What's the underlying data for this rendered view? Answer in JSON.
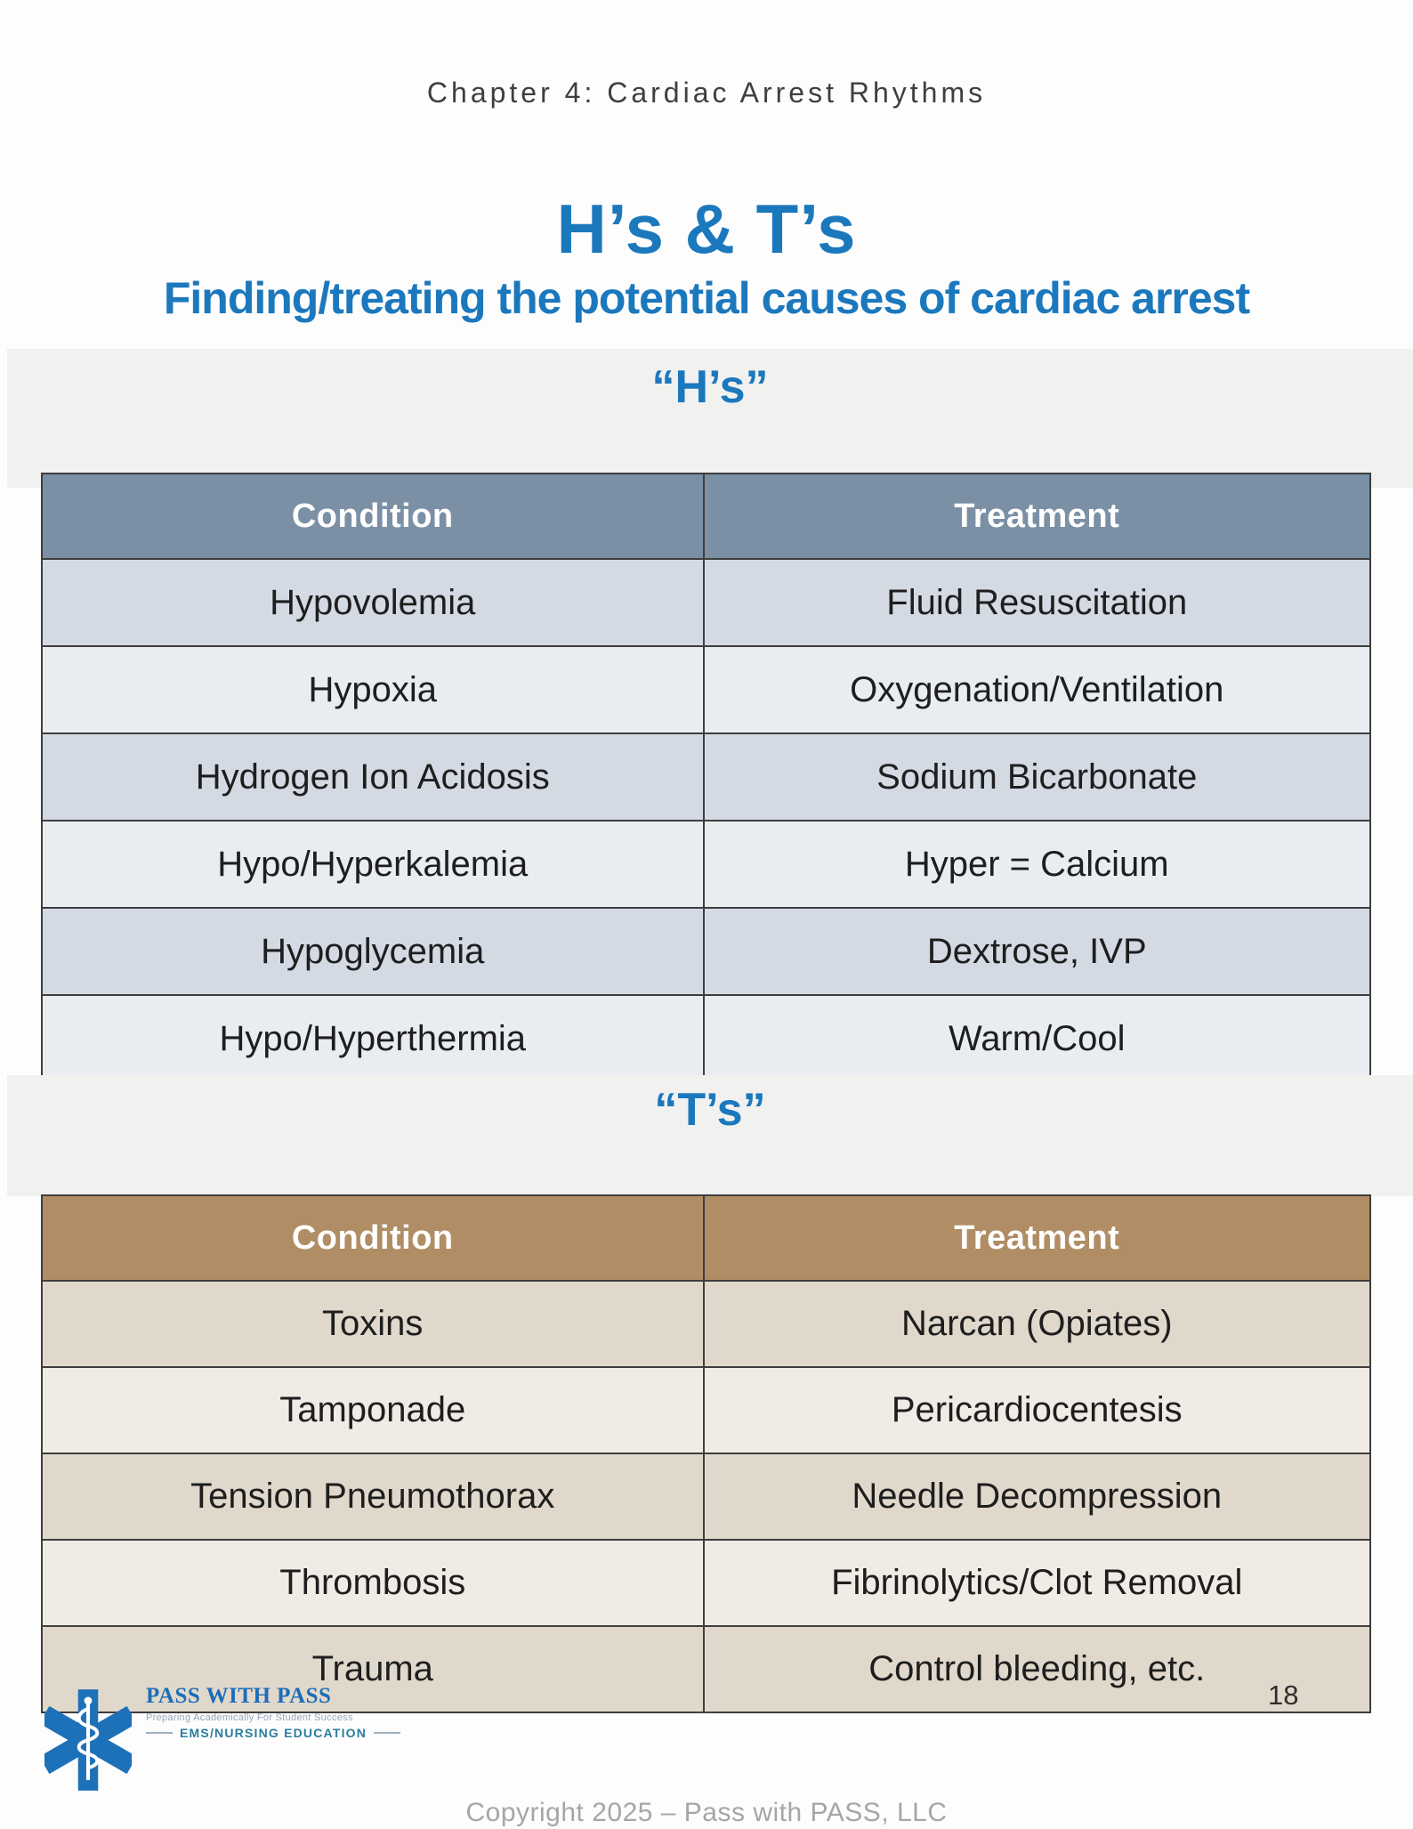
{
  "page": {
    "chapter_header": "Chapter 4: Cardiac Arrest Rhythms",
    "title": "H’s & T’s",
    "subtitle": "Finding/treating the potential causes of cardiac arrest",
    "page_number": "18",
    "footer": "Copyright 2025 – Pass with PASS, LLC"
  },
  "colors": {
    "accent_blue": "#1b78bd",
    "section_strip_bg": "#f1f1f0",
    "table_border": "#3e3e3e",
    "hs_header_bg": "#7b90a5",
    "hs_row_dark": "#d4dae3",
    "hs_row_light": "#e9ecf0",
    "ts_header_bg": "#b08d64",
    "ts_row_dark": "#e1d8cc",
    "ts_row_light": "#f0ebe5"
  },
  "tables": [
    {
      "id": "hs",
      "heading": "“H’s”",
      "columns": [
        "Condition",
        "Treatment"
      ],
      "rows": [
        [
          "Hypovolemia",
          "Fluid Resuscitation"
        ],
        [
          "Hypoxia",
          "Oxygenation/Ventilation"
        ],
        [
          "Hydrogen Ion Acidosis",
          "Sodium Bicarbonate"
        ],
        [
          "Hypo/Hyperkalemia",
          "Hyper = Calcium"
        ],
        [
          "Hypoglycemia",
          "Dextrose, IVP"
        ],
        [
          "Hypo/Hyperthermia",
          "Warm/Cool"
        ]
      ]
    },
    {
      "id": "ts",
      "heading": "“T’s”",
      "columns": [
        "Condition",
        "Treatment"
      ],
      "rows": [
        [
          "Toxins",
          "Narcan (Opiates)"
        ],
        [
          "Tamponade",
          "Pericardiocentesis"
        ],
        [
          "Tension Pneumothorax",
          "Needle Decompression"
        ],
        [
          "Thrombosis",
          "Fibrinolytics/Clot Removal"
        ],
        [
          "Trauma",
          "Control bleeding, etc."
        ]
      ]
    }
  ],
  "logo": {
    "icon": "star-of-life",
    "name": "PASS WITH PASS",
    "tagline": "Preparing Academically For Student Success",
    "division": "EMS/NURSING EDUCATION"
  }
}
